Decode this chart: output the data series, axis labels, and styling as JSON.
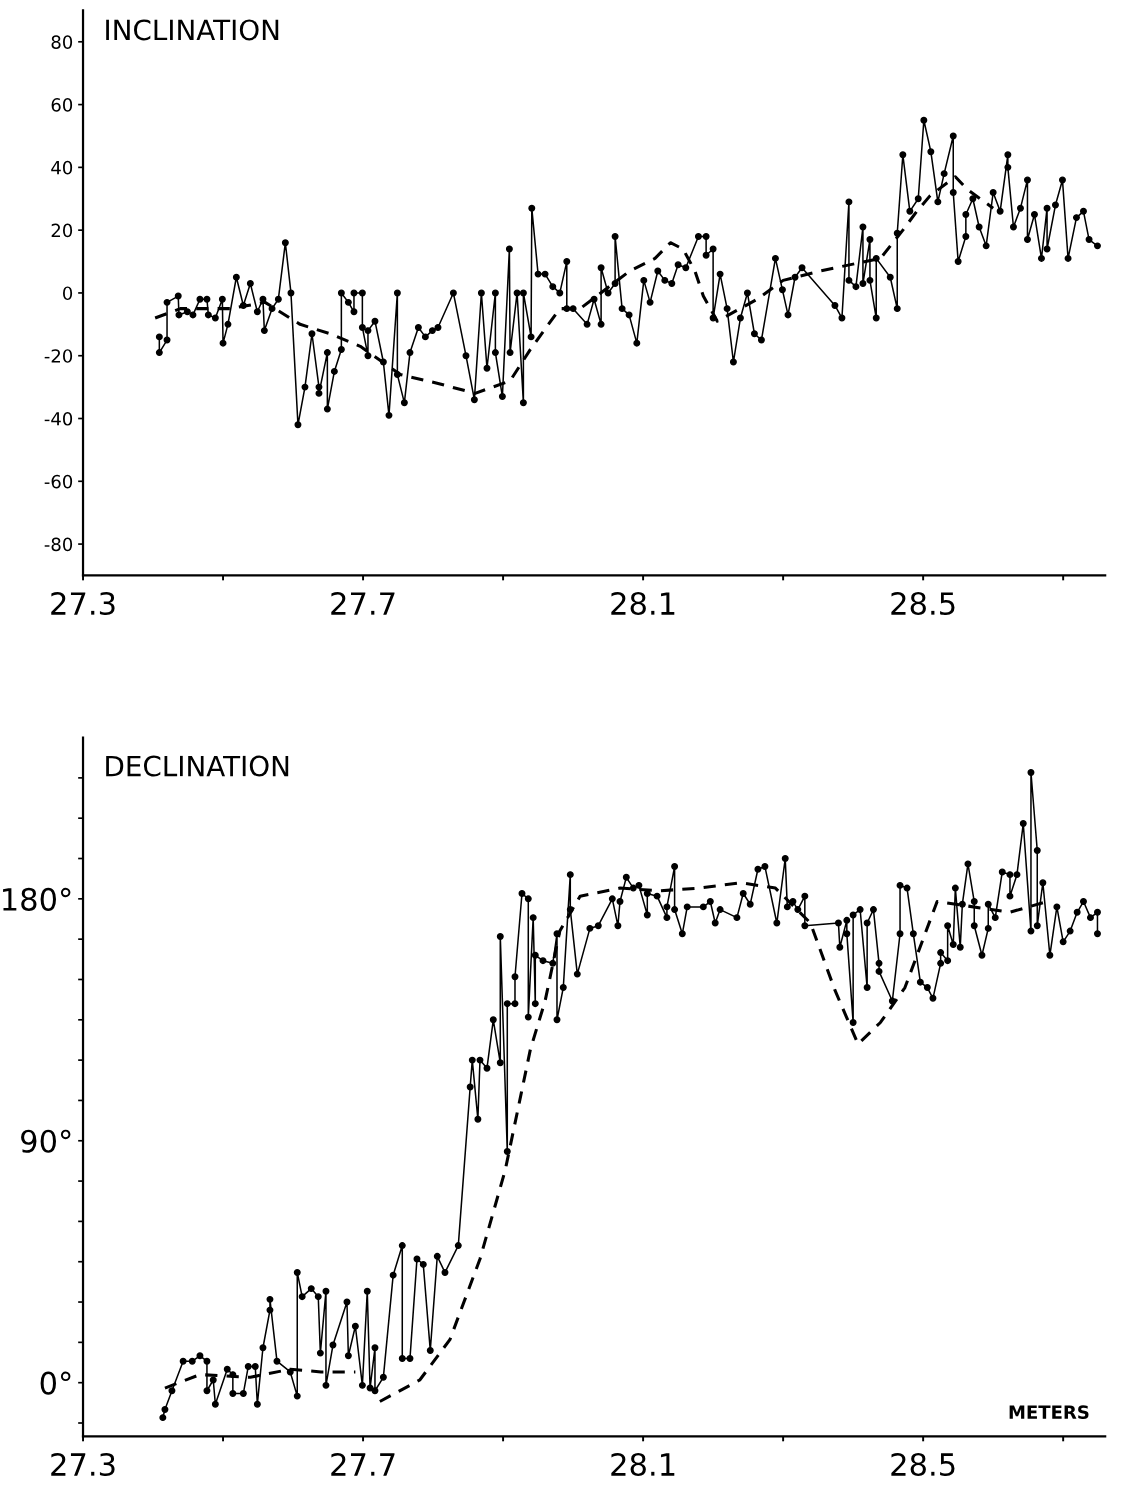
{
  "chart_data": [
    {
      "type": "line",
      "title": "INCLINATION",
      "xlim": [
        27.3,
        28.76
      ],
      "ylim": [
        -90,
        90
      ],
      "xticks": [
        27.3,
        {
          "value": 27.5,
          "label": null
        },
        27.7,
        {
          "value": 27.9,
          "label": null
        },
        28.1,
        {
          "value": 28.3,
          "label": null
        },
        28.5,
        {
          "value": 28.7,
          "label": null
        }
      ],
      "yticks": [
        -80,
        -60,
        -40,
        -20,
        0,
        20,
        40,
        60,
        80
      ],
      "series": [
        {
          "color": "#000000",
          "marker": "circle",
          "line_style": "solid",
          "x": [
            27.409,
            27.409,
            27.42,
            27.42,
            27.436,
            27.437,
            27.449,
            27.457,
            27.467,
            27.477,
            27.479,
            27.489,
            27.499,
            27.5,
            27.507,
            27.519,
            27.529,
            27.539,
            27.549,
            27.557,
            27.559,
            27.57,
            27.579,
            27.589,
            27.597,
            27.607,
            27.617,
            27.627,
            27.637,
            27.637,
            27.649,
            27.649,
            27.659,
            27.669,
            27.669,
            27.679,
            27.687,
            27.687,
            27.699,
            27.699,
            27.707,
            27.707,
            27.717,
            27.729,
            27.737,
            27.749,
            27.749,
            27.759,
            27.767,
            27.779,
            27.789,
            27.799,
            27.807,
            27.829,
            27.847,
            27.859,
            27.869,
            27.877,
            27.889,
            27.889,
            27.899,
            27.909,
            27.91,
            27.92,
            27.929,
            27.929,
            27.94,
            27.941,
            27.95,
            27.96,
            27.971,
            27.981,
            27.991,
            27.991,
            28.0,
            28.02,
            28.03,
            28.04,
            28.04,
            28.05,
            28.06,
            28.06,
            28.07,
            28.08,
            28.091,
            28.101,
            28.11,
            28.121,
            28.131,
            28.141,
            28.15,
            28.161,
            28.179,
            28.19,
            28.19,
            28.2,
            28.2,
            28.21,
            28.22,
            28.229,
            28.239,
            28.249,
            28.259,
            28.269,
            28.289,
            28.299,
            28.307,
            28.317,
            28.327,
            28.374,
            28.384,
            28.394,
            28.394,
            28.404,
            28.414,
            28.414,
            28.424,
            28.424,
            28.433,
            28.433,
            28.453,
            28.463,
            28.463,
            28.471,
            28.481,
            28.493,
            28.501,
            28.511,
            28.521,
            28.53,
            28.543,
            28.543,
            28.55,
            28.561,
            28.561,
            28.571,
            28.58,
            28.59,
            28.6,
            28.61,
            28.621,
            28.621,
            28.629,
            28.639,
            28.649,
            28.649,
            28.659,
            28.669,
            28.677,
            28.677,
            28.689,
            28.699,
            28.707,
            28.719,
            28.729,
            28.737,
            28.749
          ],
          "values": [
            -14,
            -19,
            -15,
            -3,
            -1,
            -7,
            -6,
            -7,
            -2,
            -2,
            -7,
            -8,
            -2,
            -16,
            -10,
            5,
            -4,
            3,
            -6,
            -2,
            -12,
            -5,
            -2,
            16,
            0,
            -42,
            -30,
            -13,
            -30,
            -32,
            -19,
            -37,
            -25,
            -18,
            0,
            -3,
            -6,
            0,
            0,
            -11,
            -20,
            -12,
            -9,
            -22,
            -39,
            0,
            -26,
            -35,
            -19,
            -11,
            -14,
            -12,
            -11,
            0,
            -20,
            -34,
            0,
            -24,
            0,
            -19,
            -33,
            14,
            -19,
            0,
            -35,
            0,
            -14,
            27,
            6,
            6,
            2,
            0,
            10,
            -5,
            -5,
            -10,
            -2,
            -10,
            8,
            0,
            3,
            18,
            -5,
            -7,
            -16,
            4,
            -3,
            7,
            4,
            3,
            9,
            8,
            18,
            18,
            12,
            14,
            -8,
            6,
            -5,
            -22,
            -8,
            0,
            -13,
            -15,
            11,
            1,
            -7,
            5,
            8,
            -4,
            -8,
            29,
            4,
            2,
            21,
            3,
            17,
            4,
            -8,
            11,
            5,
            -5,
            19,
            44,
            26,
            30,
            55,
            45,
            29,
            38,
            50,
            32,
            10,
            18,
            25,
            30,
            21,
            15,
            32,
            26,
            44,
            40,
            21,
            27,
            36,
            17,
            25,
            11,
            27,
            14,
            28,
            36,
            11,
            24,
            26,
            17,
            15
          ]
        },
        {
          "color": "#000000",
          "marker": "none",
          "line_style": "dashed",
          "x": [
            27.403,
            27.439,
            27.51,
            27.56,
            27.61,
            27.653,
            27.696,
            27.753,
            27.81,
            27.86,
            27.91,
            27.939,
            27.981,
            28.01,
            28.081,
            28.117,
            28.139,
            28.157,
            28.174,
            28.186,
            28.206,
            28.263,
            28.3,
            28.353,
            28.439,
            28.471,
            28.491,
            28.51,
            28.546,
            28.563,
            28.6
          ],
          "values": [
            -8,
            -5,
            -5,
            -3,
            -10,
            -13,
            -17,
            -26,
            -29,
            -32,
            -28,
            -18,
            -5,
            -5,
            7,
            11,
            16,
            14,
            7,
            -1,
            -9,
            -2,
            4,
            7,
            11,
            20,
            26,
            31,
            37,
            33,
            27
          ]
        }
      ]
    },
    {
      "type": "line",
      "title": "DECLINATION",
      "xlabel": "METERS",
      "xlim": [
        27.3,
        28.76
      ],
      "ylim": [
        -20,
        240
      ],
      "xticks": [
        27.3,
        {
          "value": 27.5,
          "label": null
        },
        27.7,
        {
          "value": 27.9,
          "label": null
        },
        28.1,
        {
          "value": 28.3,
          "label": null
        },
        28.5,
        {
          "value": 28.7,
          "label": null
        }
      ],
      "yticks": [
        {
          "value": -15,
          "label": null
        },
        {
          "value": 0,
          "label": "0°"
        },
        {
          "value": 15,
          "label": null
        },
        {
          "value": 30,
          "label": null
        },
        {
          "value": 45,
          "label": null
        },
        {
          "value": 60,
          "label": null
        },
        {
          "value": 75,
          "label": null
        },
        {
          "value": 90,
          "label": "90°"
        },
        {
          "value": 105,
          "label": null
        },
        {
          "value": 120,
          "label": null
        },
        {
          "value": 135,
          "label": null
        },
        {
          "value": 150,
          "label": null
        },
        {
          "value": 165,
          "label": null
        },
        {
          "value": 180,
          "label": "180°"
        },
        {
          "value": 195,
          "label": null
        },
        {
          "value": 210,
          "label": null
        },
        {
          "value": 225,
          "label": null
        }
      ],
      "series": [
        {
          "color": "#000000",
          "marker": "circle",
          "line_style": "solid",
          "x": [
            27.414,
            27.417,
            27.427,
            27.443,
            27.456,
            27.467,
            27.477,
            27.477,
            27.486,
            27.489,
            27.506,
            27.514,
            27.514,
            27.529,
            27.536,
            27.546,
            27.549,
            27.557,
            27.567,
            27.567,
            27.577,
            27.596,
            27.606,
            27.606,
            27.613,
            27.626,
            27.636,
            27.639,
            27.647,
            27.647,
            27.657,
            27.677,
            27.679,
            27.689,
            27.699,
            27.706,
            27.71,
            27.717,
            27.717,
            27.729,
            27.743,
            27.756,
            27.756,
            27.767,
            27.777,
            27.786,
            27.796,
            27.806,
            27.817,
            27.836,
            27.853,
            27.856,
            27.864,
            27.867,
            27.877,
            27.886,
            27.896,
            27.896,
            27.906,
            27.906,
            27.917,
            27.917,
            27.927,
            27.936,
            27.936,
            27.943,
            27.946,
            27.946,
            27.957,
            27.971,
            27.977,
            27.977,
            27.986,
            27.996,
            27.996,
            28.006,
            28.024,
            28.036,
            28.056,
            28.064,
            28.067,
            28.076,
            28.086,
            28.094,
            28.106,
            28.106,
            28.12,
            28.134,
            28.134,
            28.145,
            28.145,
            28.156,
            28.163,
            28.186,
            28.196,
            28.203,
            28.21,
            28.234,
            28.243,
            28.253,
            28.264,
            28.274,
            28.291,
            28.303,
            28.306,
            28.314,
            28.321,
            28.331,
            28.331,
            28.379,
            28.381,
            28.391,
            28.391,
            28.4,
            28.4,
            28.41,
            28.42,
            28.42,
            28.429,
            28.437,
            28.437,
            28.456,
            28.467,
            28.467,
            28.477,
            28.486,
            28.496,
            28.506,
            28.514,
            28.525,
            28.525,
            28.535,
            28.535,
            28.543,
            28.546,
            28.553,
            28.556,
            28.564,
            28.573,
            28.573,
            28.584,
            28.593,
            28.593,
            28.603,
            28.613,
            28.624,
            28.624,
            28.634,
            28.643,
            28.654,
            28.654,
            28.663,
            28.663,
            28.671,
            28.681,
            28.691,
            28.7,
            28.71,
            28.72,
            28.729,
            28.739,
            28.749,
            28.749
          ],
          "values": [
            -13,
            -10,
            -3,
            8,
            8,
            10,
            8,
            -3,
            1,
            -8,
            5,
            3,
            -4,
            -4,
            6,
            6,
            -8,
            13,
            27,
            31,
            8,
            4,
            -5,
            41,
            32,
            35,
            32,
            11,
            34,
            -1,
            14,
            30,
            10,
            21,
            -1,
            34,
            -2,
            13,
            -3,
            2,
            40,
            51,
            9,
            9,
            46,
            44,
            12,
            47,
            41,
            51,
            110,
            120,
            98,
            120,
            117,
            135,
            119,
            166,
            86,
            141,
            141,
            151,
            182,
            180,
            136,
            173,
            141,
            159,
            157,
            156,
            167,
            135,
            147,
            189,
            176,
            152,
            169,
            170,
            180,
            170,
            179,
            188,
            184,
            185,
            174,
            182,
            181,
            173,
            177,
            192,
            176,
            167,
            177,
            177,
            179,
            171,
            176,
            173,
            182,
            178,
            191,
            192,
            171,
            195,
            177,
            179,
            176,
            181,
            170,
            171,
            162,
            172,
            167,
            134,
            174,
            176,
            147,
            171,
            176,
            156,
            153,
            142,
            167,
            185,
            184,
            167,
            149,
            147,
            143,
            156,
            160,
            157,
            170,
            163,
            184,
            162,
            178,
            193,
            179,
            170,
            159,
            169,
            178,
            173,
            190,
            189,
            181,
            189,
            208,
            168,
            227,
            198,
            170,
            186,
            159,
            177,
            164,
            168,
            175,
            179,
            173,
            175,
            167
          ]
        },
        {
          "color": "#000000",
          "marker": "none",
          "line_style": "dashed",
          "x": [
            27.417,
            27.467,
            27.539,
            27.596,
            27.64,
            27.689
          ],
          "values": [
            -2,
            3,
            2,
            5,
            4,
            4
          ]
        },
        {
          "color": "#000000",
          "marker": "none",
          "line_style": "dashed",
          "x": [
            27.724,
            27.781,
            27.824,
            27.867,
            27.903,
            27.939,
            27.96,
            27.981,
            28.01,
            28.067,
            28.124,
            28.181,
            28.239,
            28.289,
            28.339,
            28.374,
            28.407,
            28.439,
            28.474,
            28.52,
            28.624,
            28.677
          ],
          "values": [
            -7,
            1,
            16,
            46,
            79,
            124,
            142,
            168,
            181,
            184,
            183,
            184,
            186,
            184,
            171,
            146,
            126,
            134,
            147,
            179,
            175,
            179
          ]
        }
      ]
    }
  ]
}
